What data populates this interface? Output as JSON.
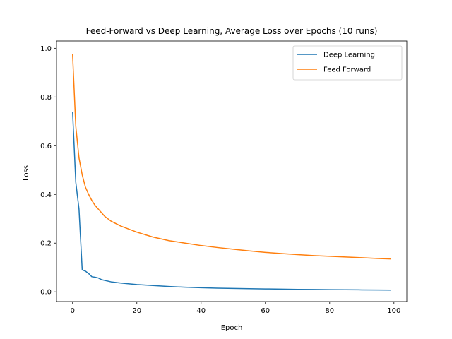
{
  "chart_data": {
    "type": "line",
    "title": "Feed-Forward vs Deep Learning, Average Loss over Epochs (10 runs)",
    "xlabel": "Epoch",
    "ylabel": "Loss",
    "xlim": [
      -5,
      104
    ],
    "ylim": [
      -0.04,
      1.03
    ],
    "xticks": [
      0,
      20,
      40,
      60,
      80,
      100
    ],
    "yticks": [
      0.0,
      0.2,
      0.4,
      0.6,
      0.8,
      1.0
    ],
    "xtick_labels": [
      "0",
      "20",
      "40",
      "60",
      "80",
      "100"
    ],
    "ytick_labels": [
      "0.0",
      "0.2",
      "0.4",
      "0.6",
      "0.8",
      "1.0"
    ],
    "legend_position": "top-right",
    "grid": false,
    "series": [
      {
        "name": "Deep Learning",
        "color": "#1f77b4",
        "x": [
          0,
          1,
          2,
          3,
          4,
          5,
          6,
          7,
          8,
          9,
          10,
          12,
          15,
          20,
          25,
          30,
          35,
          40,
          45,
          50,
          55,
          60,
          65,
          70,
          75,
          80,
          85,
          90,
          95,
          99
        ],
        "y": [
          0.74,
          0.45,
          0.34,
          0.09,
          0.085,
          0.075,
          0.062,
          0.06,
          0.057,
          0.05,
          0.047,
          0.041,
          0.036,
          0.03,
          0.026,
          0.022,
          0.019,
          0.017,
          0.015,
          0.014,
          0.013,
          0.012,
          0.011,
          0.01,
          0.0095,
          0.009,
          0.0085,
          0.008,
          0.0075,
          0.007
        ]
      },
      {
        "name": "Feed Forward",
        "color": "#ff7f0e",
        "x": [
          0,
          1,
          2,
          3,
          4,
          5,
          6,
          7,
          8,
          9,
          10,
          12,
          15,
          20,
          25,
          30,
          35,
          40,
          45,
          50,
          55,
          60,
          65,
          70,
          75,
          80,
          85,
          90,
          95,
          99
        ],
        "y": [
          0.975,
          0.68,
          0.55,
          0.48,
          0.43,
          0.4,
          0.375,
          0.355,
          0.34,
          0.325,
          0.31,
          0.29,
          0.27,
          0.245,
          0.225,
          0.21,
          0.2,
          0.19,
          0.182,
          0.175,
          0.168,
          0.162,
          0.157,
          0.153,
          0.149,
          0.146,
          0.143,
          0.14,
          0.137,
          0.135
        ]
      }
    ]
  }
}
